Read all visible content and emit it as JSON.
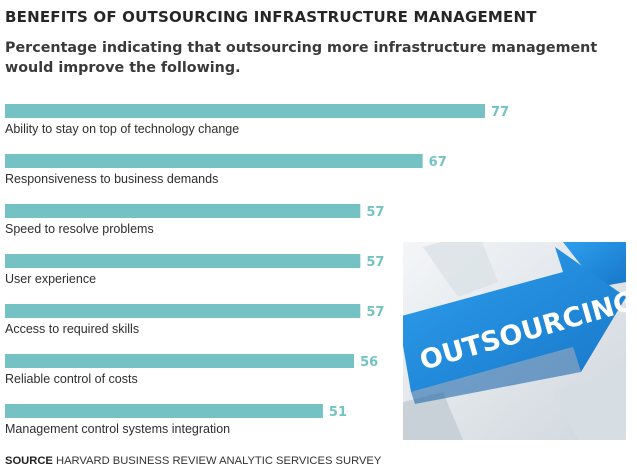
{
  "title": "BENEFITS OF OUTSOURCING INFRASTRUCTURE MANAGEMENT",
  "subtitle": "Percentage indicating that outsourcing more infrastructure management would improve the following.",
  "source_label": "SOURCE",
  "source_text": "HARVARD BUSINESS REVIEW ANALYTIC SERVICES SURVEY",
  "photo_text": "OUTSOURCING",
  "colors": {
    "bar": "#74c2c4",
    "value_label": "#74c2c4",
    "category_label": "#2e2e2e",
    "arrow": "#1f8fe0"
  },
  "chart_data": {
    "type": "bar",
    "orientation": "horizontal",
    "categories": [
      "Ability to stay on top of technology change",
      "Responsiveness to business demands",
      "Speed to resolve problems",
      "User experience",
      "Access to required skills",
      "Reliable control of costs",
      "Management control systems integration"
    ],
    "values": [
      77,
      67,
      57,
      57,
      57,
      56,
      51
    ],
    "value_labels": [
      "77",
      "67",
      "57",
      "57",
      "57",
      "56",
      "51"
    ],
    "unit": "percent",
    "xlim": [
      0,
      100
    ],
    "grid": false,
    "legend": "none"
  }
}
